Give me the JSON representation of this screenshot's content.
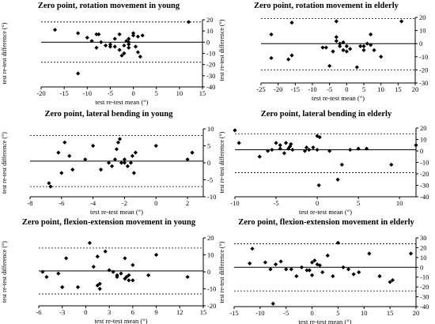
{
  "chart_data": [
    {
      "type": "scatter",
      "title": "Zero point, rotation movement in young",
      "xlabel": "test re-test mean (°)",
      "ylabel": "test re-test difference (°)",
      "xlim": [
        -20,
        15
      ],
      "ylim": [
        -40,
        20
      ],
      "xticks": [
        "-20",
        "-15",
        "-10",
        "-5",
        "0",
        "5",
        "10",
        "15"
      ],
      "yticks": [
        "20",
        "10",
        "0",
        "-10",
        "-20",
        "-30",
        "-40"
      ],
      "reference_lines": {
        "mean": 0,
        "upper_loa": 18,
        "lower_loa": -18
      },
      "points": [
        [
          -17,
          11
        ],
        [
          -12,
          8
        ],
        [
          -12,
          -28
        ],
        [
          -10,
          4
        ],
        [
          -9,
          1
        ],
        [
          -8,
          -5
        ],
        [
          -8,
          7
        ],
        [
          -7.5,
          7
        ],
        [
          -7,
          0
        ],
        [
          -6,
          -3
        ],
        [
          -5,
          -4
        ],
        [
          -5,
          -2
        ],
        [
          -4,
          -4
        ],
        [
          -4,
          3
        ],
        [
          -3,
          7
        ],
        [
          -3,
          -7
        ],
        [
          -2,
          -10
        ],
        [
          -2.5,
          -12
        ],
        [
          -2,
          -3
        ],
        [
          -1.5,
          1
        ],
        [
          -1,
          3
        ],
        [
          -1,
          0
        ],
        [
          -1,
          -2
        ],
        [
          -1,
          -5
        ],
        [
          0,
          8
        ],
        [
          0,
          6
        ],
        [
          0.5,
          -4
        ],
        [
          1,
          5
        ],
        [
          1,
          -9
        ],
        [
          1.5,
          -13
        ],
        [
          2,
          6
        ],
        [
          12,
          18
        ]
      ]
    },
    {
      "type": "scatter",
      "title": "Zero point, rotation movement in elderly",
      "xlabel": "test re-test mean (°)",
      "ylabel": "test re-test difference (°)",
      "xlim": [
        -25,
        20
      ],
      "ylim": [
        -30,
        20
      ],
      "xticks": [
        "-25",
        "-20",
        "-15",
        "-10",
        "-5",
        "0",
        "5",
        "10",
        "15",
        "20"
      ],
      "yticks": [
        "20",
        "10",
        "0",
        "-10",
        "-20",
        "-30"
      ],
      "reference_lines": {
        "mean": 0,
        "upper_loa": 19,
        "lower_loa": -20
      },
      "points": [
        [
          -22,
          7
        ],
        [
          -22,
          -11
        ],
        [
          -17,
          -12
        ],
        [
          -16,
          16
        ],
        [
          -16,
          -9
        ],
        [
          -7,
          -3
        ],
        [
          -6,
          -3
        ],
        [
          -5,
          -17
        ],
        [
          -4,
          -6
        ],
        [
          -3,
          5
        ],
        [
          -3,
          2
        ],
        [
          -3,
          17
        ],
        [
          -2,
          0
        ],
        [
          -2,
          -2
        ],
        [
          -1,
          1
        ],
        [
          -1,
          -5
        ],
        [
          0,
          -2
        ],
        [
          0,
          -6
        ],
        [
          1,
          -4
        ],
        [
          3,
          -18
        ],
        [
          4,
          -2
        ],
        [
          5,
          -5
        ],
        [
          5,
          -2
        ],
        [
          6,
          0
        ],
        [
          7,
          7
        ],
        [
          7,
          -1
        ],
        [
          8,
          -5
        ],
        [
          10,
          -10
        ],
        [
          16,
          17
        ]
      ]
    },
    {
      "type": "scatter",
      "title": "Zero point, lateral bending in young",
      "xlabel": "test re-test mean (°)",
      "ylabel": "test re-test difference (°)",
      "xlim": [
        -8,
        3
      ],
      "ylim": [
        -10,
        10
      ],
      "xticks": [
        "-8",
        "-6",
        "-4",
        "-2",
        "0",
        "2"
      ],
      "yticks": [
        "10",
        "5",
        "0",
        "-5",
        "-10"
      ],
      "reference_lines": {
        "mean": 0.5,
        "upper_loa": 8,
        "lower_loa": -7
      },
      "points": [
        [
          -6.8,
          -6
        ],
        [
          -6.7,
          -7
        ],
        [
          -6.2,
          3
        ],
        [
          -6,
          -3
        ],
        [
          -5.8,
          6
        ],
        [
          -5.5,
          2
        ],
        [
          -5.3,
          -2
        ],
        [
          -4.5,
          1
        ],
        [
          -4,
          5
        ],
        [
          -3.5,
          -2
        ],
        [
          -3,
          0
        ],
        [
          -2.8,
          -1
        ],
        [
          -2.6,
          1
        ],
        [
          -2.5,
          4
        ],
        [
          -2.4,
          6
        ],
        [
          -2.3,
          7
        ],
        [
          -2.2,
          0
        ],
        [
          -2,
          1
        ],
        [
          -2,
          0
        ],
        [
          -1.8,
          -1
        ],
        [
          -1.6,
          0
        ],
        [
          -1.5,
          2
        ],
        [
          -1.4,
          -3
        ],
        [
          -1.3,
          3
        ],
        [
          0,
          5
        ],
        [
          2,
          1
        ],
        [
          2.3,
          3
        ]
      ]
    },
    {
      "type": "scatter",
      "title": "Zero point, lateral bending in elderly",
      "xlabel": "test re-test mean (°)",
      "ylabel": "test re-test difference (°)",
      "xlim": [
        -10,
        12
      ],
      "ylim": [
        -40,
        20
      ],
      "xticks": [
        "-10",
        "-5",
        "0",
        "5",
        "10"
      ],
      "yticks": [
        "20",
        "10",
        "0",
        "-10",
        "-20",
        "-30",
        "-40"
      ],
      "reference_lines": {
        "mean": 1,
        "upper_loa": 15,
        "lower_loa": -19
      },
      "points": [
        [
          -10,
          18
        ],
        [
          -9.5,
          7
        ],
        [
          -7,
          -5
        ],
        [
          -6,
          0
        ],
        [
          -5.5,
          1
        ],
        [
          -5,
          7
        ],
        [
          -4.5,
          5
        ],
        [
          -4.5,
          2
        ],
        [
          -4,
          -2
        ],
        [
          -3.8,
          7
        ],
        [
          -3.5,
          2
        ],
        [
          -3.3,
          4
        ],
        [
          -3.2,
          6
        ],
        [
          -3,
          1
        ],
        [
          -1.5,
          0
        ],
        [
          -1.3,
          3
        ],
        [
          -1,
          1
        ],
        [
          -0.5,
          3
        ],
        [
          0,
          13
        ],
        [
          0,
          1
        ],
        [
          0.2,
          -30
        ],
        [
          0.3,
          12
        ],
        [
          1.5,
          0
        ],
        [
          2.5,
          -25
        ],
        [
          3,
          -12
        ],
        [
          4,
          1
        ],
        [
          5,
          2
        ],
        [
          6,
          2
        ],
        [
          9,
          -12
        ],
        [
          12,
          5
        ]
      ]
    },
    {
      "type": "scatter",
      "title": "Zero point, flexion-extension movement in young",
      "xlabel": "test re-test mean (°)",
      "ylabel": "test re-test difference (°)",
      "xlim": [
        -6,
        15
      ],
      "ylim": [
        -20,
        20
      ],
      "xticks": [
        "-6",
        "-3",
        "0",
        "3",
        "6",
        "9",
        "12",
        "15"
      ],
      "yticks": [
        "20",
        "10",
        "0",
        "-10",
        "-20"
      ],
      "reference_lines": {
        "mean": 0.5,
        "upper_loa": 14,
        "lower_loa": -13
      },
      "points": [
        [
          -5.5,
          0
        ],
        [
          -5,
          -3
        ],
        [
          -3.5,
          -1
        ],
        [
          -3,
          -9
        ],
        [
          -2.5,
          8
        ],
        [
          -1,
          -9
        ],
        [
          0.5,
          17
        ],
        [
          1,
          3
        ],
        [
          1.5,
          9
        ],
        [
          1.5,
          -8
        ],
        [
          1.8,
          -7
        ],
        [
          1.8,
          -10
        ],
        [
          2.5,
          12
        ],
        [
          3,
          1
        ],
        [
          3.5,
          0
        ],
        [
          4,
          -2
        ],
        [
          4,
          -3
        ],
        [
          4.5,
          -1
        ],
        [
          5,
          8
        ],
        [
          5,
          -4
        ],
        [
          5.2,
          -3
        ],
        [
          5.5,
          -5
        ],
        [
          5.5,
          -2
        ],
        [
          6,
          4
        ],
        [
          6,
          -5
        ],
        [
          8,
          -2
        ],
        [
          9,
          10
        ],
        [
          13,
          -3
        ]
      ]
    },
    {
      "type": "scatter",
      "title": "Zero point, flexion-extension movement in elderly",
      "xlabel": "test re-test mean (°)",
      "ylabel": "test re-test difference (°)",
      "xlim": [
        -15,
        20
      ],
      "ylim": [
        -40,
        30
      ],
      "xticks": [
        "-15",
        "-10",
        "-5",
        "0",
        "5",
        "10",
        "15",
        "20"
      ],
      "yticks": [
        "30",
        "20",
        "10",
        "0",
        "-10",
        "-20",
        "-30",
        "-40"
      ],
      "reference_lines": {
        "mean": 0,
        "upper_loa": 24,
        "lower_loa": -24
      },
      "points": [
        [
          -12,
          4
        ],
        [
          -11.5,
          19
        ],
        [
          -9,
          5
        ],
        [
          -8,
          -2
        ],
        [
          -7.5,
          -37
        ],
        [
          -7,
          3
        ],
        [
          -6,
          6
        ],
        [
          -5,
          -2
        ],
        [
          -4,
          -2
        ],
        [
          -3,
          -9
        ],
        [
          -2,
          0
        ],
        [
          -1,
          -3
        ],
        [
          -0.5,
          -3
        ],
        [
          0,
          5
        ],
        [
          0,
          -8
        ],
        [
          0.5,
          7
        ],
        [
          1,
          3
        ],
        [
          1.5,
          2
        ],
        [
          2,
          -5
        ],
        [
          3,
          12
        ],
        [
          4,
          -9
        ],
        [
          5,
          25
        ],
        [
          6,
          0
        ],
        [
          7,
          -2
        ],
        [
          8,
          -7
        ],
        [
          9,
          -5
        ],
        [
          11,
          14
        ],
        [
          13,
          -9
        ],
        [
          15,
          -15
        ],
        [
          15.5,
          -13
        ],
        [
          19,
          14
        ]
      ]
    }
  ]
}
